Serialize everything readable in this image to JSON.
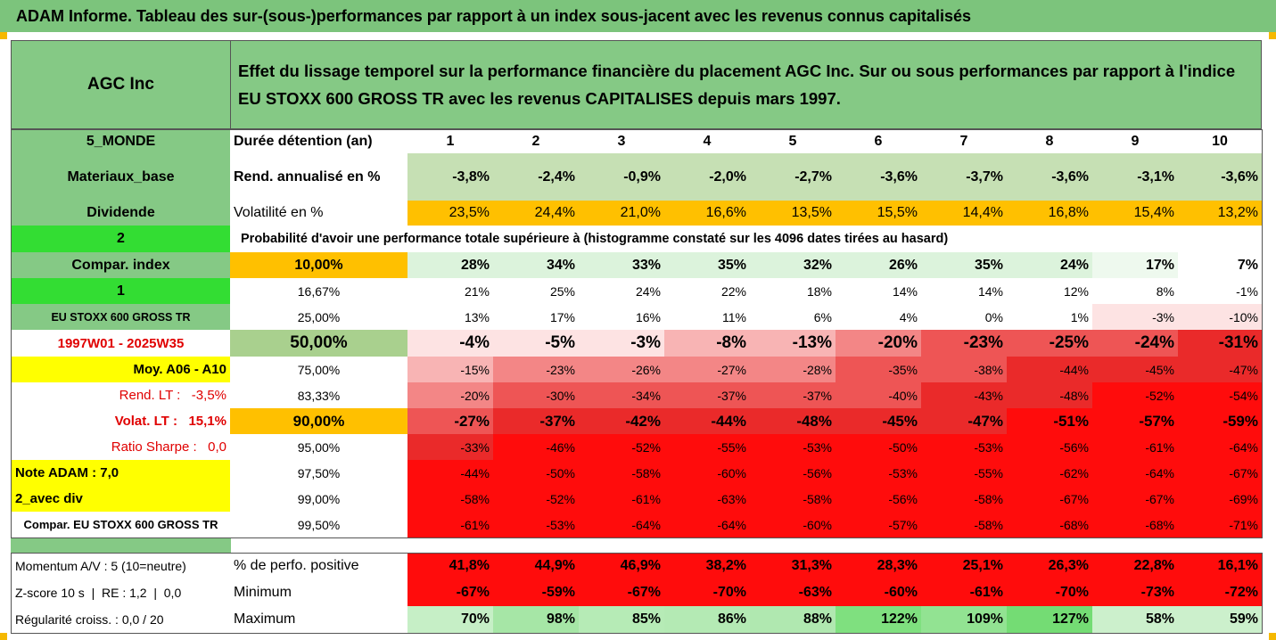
{
  "title": "ADAM Informe. Tableau des sur-(sous-)performances par rapport à un index sous-jacent avec les revenus connus capitalisés",
  "header": {
    "company": "AGC Inc",
    "description": "Effet du lissage temporel sur la performance financière du placement AGC Inc. Sur ou sous performances par rapport à l'indice EU STOXX 600 GROSS TR avec les revenus CAPITALISES depuis mars 1997."
  },
  "rows": [
    [
      "5_MONDE",
      "Durée détention (an)",
      "1",
      "2",
      "3",
      "4",
      "5",
      "6",
      "7",
      "8",
      "9",
      "10"
    ],
    [
      "Materiaux_base",
      "Rend. annualisé en %",
      "-3,8%",
      "-2,4%",
      "-0,9%",
      "-2,0%",
      "-2,7%",
      "-3,6%",
      "-3,7%",
      "-3,6%",
      "-3,1%",
      "-3,6%"
    ],
    [
      "Dividende",
      "Volatilité en %",
      "23,5%",
      "24,4%",
      "21,0%",
      "16,6%",
      "13,5%",
      "15,5%",
      "14,4%",
      "16,8%",
      "15,4%",
      "13,2%"
    ],
    [
      "2",
      "Probabilité d'avoir une performance totale supérieure à (histogramme constaté sur les 4096 dates tirées au hasard)"
    ],
    [
      "Compar. index",
      "10,00%",
      "28%",
      "34%",
      "33%",
      "35%",
      "32%",
      "26%",
      "35%",
      "24%",
      "17%",
      "7%"
    ],
    [
      "1",
      "16,67%",
      "21%",
      "25%",
      "24%",
      "22%",
      "18%",
      "14%",
      "14%",
      "12%",
      "8%",
      "-1%"
    ],
    [
      "EU STOXX 600 GROSS TR",
      "25,00%",
      "13%",
      "17%",
      "16%",
      "11%",
      "6%",
      "4%",
      "0%",
      "1%",
      "-3%",
      "-10%"
    ],
    [
      "1997W01 - 2025W35",
      "50,00%",
      "-4%",
      "-5%",
      "-3%",
      "-8%",
      "-13%",
      "-20%",
      "-23%",
      "-25%",
      "-24%",
      "-31%"
    ],
    [
      "Moy. A06 - A10",
      "75,00%",
      "-15%",
      "-23%",
      "-26%",
      "-27%",
      "-28%",
      "-35%",
      "-38%",
      "-44%",
      "-45%",
      "-47%"
    ],
    [
      "Rend. LT :   -3,5%",
      "83,33%",
      "-20%",
      "-30%",
      "-34%",
      "-37%",
      "-37%",
      "-40%",
      "-43%",
      "-48%",
      "-52%",
      "-54%"
    ],
    [
      "Volat. LT :   15,1%",
      "90,00%",
      "-27%",
      "-37%",
      "-42%",
      "-44%",
      "-48%",
      "-45%",
      "-47%",
      "-51%",
      "-57%",
      "-59%"
    ],
    [
      "Ratio Sharpe :   0,0",
      "95,00%",
      "-33%",
      "-46%",
      "-52%",
      "-55%",
      "-53%",
      "-50%",
      "-53%",
      "-56%",
      "-61%",
      "-64%"
    ],
    [
      "Note ADAM : 7,0",
      "97,50%",
      "-44%",
      "-50%",
      "-58%",
      "-60%",
      "-56%",
      "-53%",
      "-55%",
      "-62%",
      "-64%",
      "-67%"
    ],
    [
      "2_avec div",
      "99,00%",
      "-58%",
      "-52%",
      "-61%",
      "-63%",
      "-58%",
      "-56%",
      "-58%",
      "-67%",
      "-67%",
      "-69%"
    ],
    [
      "Compar. EU STOXX 600 GROSS TR",
      "99,50%",
      "-61%",
      "-53%",
      "-64%",
      "-64%",
      "-60%",
      "-57%",
      "-58%",
      "-68%",
      "-68%",
      "-71%"
    ],
    [
      "Momentum A/V : 5 (10=neutre)",
      "% de perfo. positive",
      "41,8%",
      "44,9%",
      "46,9%",
      "38,2%",
      "31,3%",
      "28,3%",
      "25,1%",
      "26,3%",
      "22,8%",
      "16,1%"
    ],
    [
      "Z-score 10 s  |  RE : 1,2  |  0,0",
      "Minimum",
      "-67%",
      "-59%",
      "-67%",
      "-70%",
      "-63%",
      "-60%",
      "-61%",
      "-70%",
      "-73%",
      "-72%"
    ],
    [
      "Régularité croiss. : 0,0 / 20",
      "Maximum",
      "70%",
      "98%",
      "85%",
      "86%",
      "88%",
      "122%",
      "109%",
      "127%",
      "58%",
      "59%"
    ]
  ]
}
